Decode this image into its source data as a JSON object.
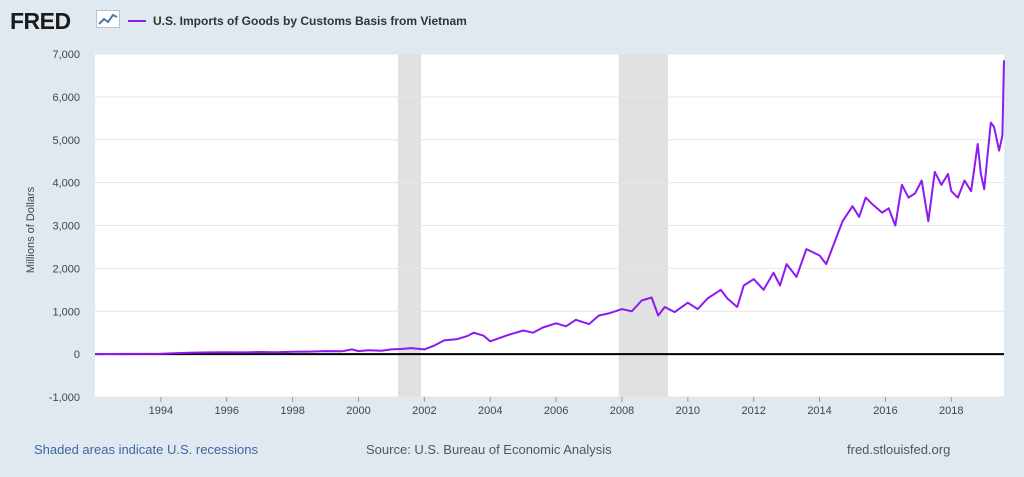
{
  "header": {
    "logo_text": "FRED",
    "logo_icon": "chart-line-icon",
    "series_title": "U.S. Imports of Goods by Customs Basis from Vietnam"
  },
  "footer": {
    "recession_note": "Shaded areas indicate U.S. recessions",
    "source": "Source: U.S. Bureau of Economic Analysis",
    "site": "fred.stlouisfed.org"
  },
  "colors": {
    "series": "#8f19f1",
    "background": "#e1e9f0",
    "recession": "#e1e1e1",
    "zero_line": "#000000"
  },
  "chart_data": {
    "type": "line",
    "title": "U.S. Imports of Goods by Customs Basis from Vietnam",
    "xlabel": "",
    "ylabel": "Millions of Dollars",
    "ylim": [
      -1000,
      7000
    ],
    "xlim": [
      1992.0,
      2019.6
    ],
    "yticks": [
      -1000,
      0,
      1000,
      2000,
      3000,
      4000,
      5000,
      6000,
      7000
    ],
    "ytick_labels": [
      "-1,000",
      "0",
      "1,000",
      "2,000",
      "3,000",
      "4,000",
      "5,000",
      "6,000",
      "7,000"
    ],
    "xticks": [
      1994,
      1996,
      1998,
      2000,
      2002,
      2004,
      2006,
      2008,
      2010,
      2012,
      2014,
      2016,
      2018
    ],
    "xtick_labels": [
      "1994",
      "1996",
      "1998",
      "2000",
      "2002",
      "2004",
      "2006",
      "2008",
      "2010",
      "2012",
      "2014",
      "2016",
      "2018"
    ],
    "grid": true,
    "legend": "top-left",
    "recessions": [
      [
        2001.2,
        2001.9
      ],
      [
        2007.9,
        2009.4
      ]
    ],
    "series": [
      {
        "name": "U.S. Imports of Goods by Customs Basis from Vietnam",
        "x": [
          1992.0,
          1993.0,
          1994.0,
          1994.5,
          1995.0,
          1995.5,
          1996.0,
          1996.5,
          1997.0,
          1997.5,
          1998.0,
          1998.5,
          1999.0,
          1999.5,
          1999.8,
          2000.0,
          2000.3,
          2000.7,
          2001.0,
          2001.3,
          2001.6,
          2002.0,
          2002.3,
          2002.6,
          2003.0,
          2003.3,
          2003.5,
          2003.8,
          2004.0,
          2004.3,
          2004.6,
          2005.0,
          2005.3,
          2005.6,
          2006.0,
          2006.3,
          2006.6,
          2007.0,
          2007.3,
          2007.6,
          2008.0,
          2008.3,
          2008.6,
          2008.9,
          2009.1,
          2009.3,
          2009.6,
          2010.0,
          2010.3,
          2010.6,
          2011.0,
          2011.2,
          2011.5,
          2011.7,
          2012.0,
          2012.3,
          2012.6,
          2012.8,
          2013.0,
          2013.3,
          2013.6,
          2014.0,
          2014.2,
          2014.5,
          2014.7,
          2015.0,
          2015.2,
          2015.4,
          2015.6,
          2015.9,
          2016.1,
          2016.3,
          2016.5,
          2016.7,
          2016.9,
          2017.1,
          2017.3,
          2017.5,
          2017.7,
          2017.9,
          2018.0,
          2018.2,
          2018.4,
          2018.6,
          2018.8,
          2018.9,
          2019.0,
          2019.2,
          2019.3,
          2019.45,
          2019.55,
          2019.6
        ],
        "values": [
          0,
          5,
          10,
          25,
          35,
          40,
          45,
          40,
          50,
          45,
          55,
          60,
          70,
          65,
          110,
          70,
          90,
          80,
          110,
          120,
          140,
          110,
          200,
          320,
          350,
          420,
          500,
          430,
          300,
          380,
          460,
          550,
          500,
          620,
          720,
          650,
          800,
          700,
          900,
          950,
          1050,
          1000,
          1250,
          1320,
          900,
          1100,
          980,
          1200,
          1050,
          1300,
          1500,
          1300,
          1100,
          1600,
          1750,
          1500,
          1900,
          1600,
          2100,
          1800,
          2450,
          2300,
          2100,
          2700,
          3100,
          3450,
          3200,
          3650,
          3500,
          3300,
          3400,
          3000,
          3950,
          3650,
          3750,
          4050,
          3100,
          4250,
          3950,
          4200,
          3800,
          3650,
          4050,
          3800,
          4900,
          4200,
          3850,
          5400,
          5300,
          4750,
          5100,
          6850
        ]
      }
    ]
  }
}
